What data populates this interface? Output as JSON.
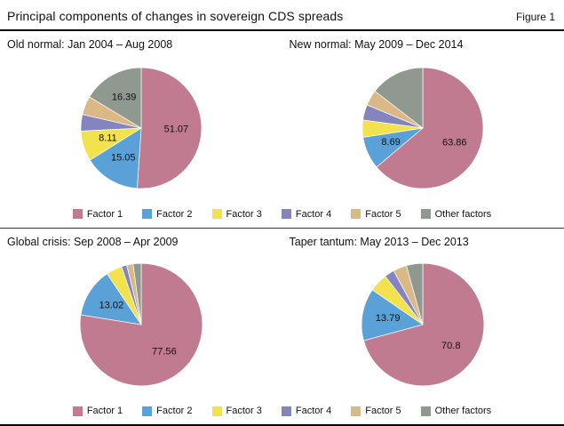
{
  "header": {
    "title": "Principal components of changes in sovereign CDS spreads",
    "figure_label": "Figure 1"
  },
  "legend": [
    "Factor 1",
    "Factor 2",
    "Factor 3",
    "Factor 4",
    "Factor 5",
    "Other factors"
  ],
  "series_colors": [
    "#c17b91",
    "#59a1d6",
    "#f2e24e",
    "#8484be",
    "#dbb987",
    "#8f998f"
  ],
  "chart_data": [
    {
      "type": "pie",
      "title": "Old normal: Jan 2004 – Aug 2008",
      "labels": [
        "Factor 1",
        "Factor 2",
        "Factor 3",
        "Factor 4",
        "Factor 5",
        "Other factors"
      ],
      "values": [
        51.07,
        15.05,
        8.11,
        4.4,
        4.98,
        16.39
      ],
      "data_labels": [
        "51.07",
        "15.05",
        "8.11",
        null,
        null,
        "16.39"
      ],
      "note": "Factor 4 and Factor 5 values estimated from slice size; labeled values shown as data_labels",
      "layout": {
        "start_angle": "12 o'clock",
        "direction": "clockwise",
        "legend_position": "bottom"
      }
    },
    {
      "type": "pie",
      "title": "New normal: May 2009 – Dec 2014",
      "labels": [
        "Factor 1",
        "Factor 2",
        "Factor 3",
        "Factor 4",
        "Factor 5",
        "Other factors"
      ],
      "values": [
        63.86,
        8.69,
        4.6,
        4.1,
        4.2,
        14.55
      ],
      "data_labels": [
        "63.86",
        "8.69",
        null,
        null,
        null,
        null
      ],
      "note": "Factor 3, Factor 4, Factor 5 and Other factors values estimated from slice size",
      "layout": {
        "start_angle": "12 o'clock",
        "direction": "clockwise",
        "legend_position": "bottom"
      }
    },
    {
      "type": "pie",
      "title": "Global crisis: Sep 2008 – Apr 2009",
      "labels": [
        "Factor 1",
        "Factor 2",
        "Factor 3",
        "Factor 4",
        "Factor 5",
        "Other factors"
      ],
      "values": [
        77.56,
        13.02,
        4.2,
        1.4,
        1.7,
        2.12
      ],
      "data_labels": [
        "77.56",
        "13.02",
        null,
        null,
        null,
        null
      ],
      "note": "Factor 3, Factor 4, Factor 5 and Other factors values estimated from slice size",
      "layout": {
        "start_angle": "12 o'clock",
        "direction": "clockwise",
        "legend_position": "bottom"
      }
    },
    {
      "type": "pie",
      "title": "Taper tantum: May 2013 – Dec 2013",
      "labels": [
        "Factor 1",
        "Factor 2",
        "Factor 3",
        "Factor 4",
        "Factor 5",
        "Other factors"
      ],
      "values": [
        70.8,
        13.79,
        4.9,
        2.6,
        3.6,
        4.31
      ],
      "data_labels": [
        "70.8",
        "13.79",
        null,
        null,
        null,
        null
      ],
      "note": "Factor 3, Factor 4, Factor 5 and Other factors values estimated from slice size",
      "layout": {
        "start_angle": "12 o'clock",
        "direction": "clockwise",
        "legend_position": "bottom"
      }
    }
  ]
}
